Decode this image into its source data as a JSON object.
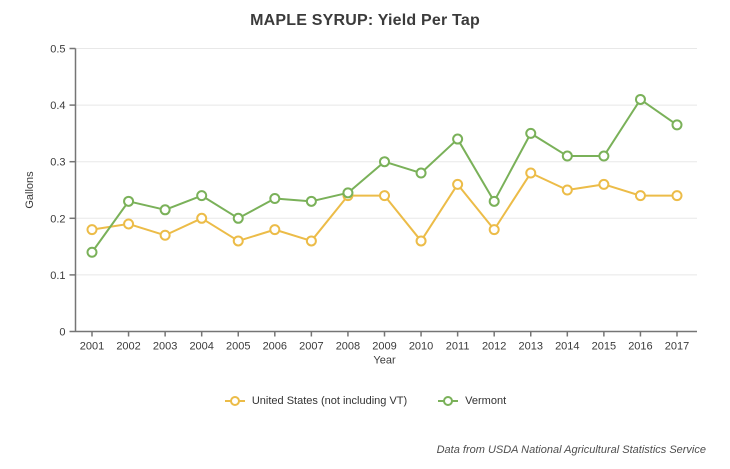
{
  "chart_data": {
    "type": "line",
    "title": "MAPLE SYRUP: Yield Per Tap",
    "xlabel": "Year",
    "ylabel": "Gallons",
    "ylim": [
      0,
      0.5
    ],
    "yticks": [
      0,
      0.1,
      0.2,
      0.3,
      0.4,
      0.5
    ],
    "ytick_labels": [
      "0",
      "0.1",
      "0.2",
      "0.3",
      "0.4",
      "0.5"
    ],
    "grid": true,
    "legend_position": "bottom",
    "marker": "open-circle",
    "categories": [
      "2001",
      "2002",
      "2003",
      "2004",
      "2005",
      "2006",
      "2007",
      "2008",
      "2009",
      "2010",
      "2011",
      "2012",
      "2013",
      "2014",
      "2015",
      "2016",
      "2017"
    ],
    "series": [
      {
        "name": "United States (not including VT)",
        "color": "#ecbc48",
        "values": [
          0.18,
          0.19,
          0.17,
          0.2,
          0.16,
          0.18,
          0.16,
          0.24,
          0.24,
          0.16,
          0.26,
          0.18,
          0.28,
          0.25,
          0.26,
          0.24,
          0.24
        ]
      },
      {
        "name": "Vermont",
        "color": "#7ab159",
        "values": [
          0.14,
          0.23,
          0.215,
          0.24,
          0.2,
          0.235,
          0.23,
          0.245,
          0.3,
          0.28,
          0.34,
          0.23,
          0.35,
          0.31,
          0.31,
          0.41,
          0.365
        ]
      }
    ],
    "source_note": "Data from USDA National Agricultural Statistics Service",
    "axis_color": "#757575",
    "grid_color": "#e8e8e8",
    "text_color": "#3b3b3b"
  }
}
